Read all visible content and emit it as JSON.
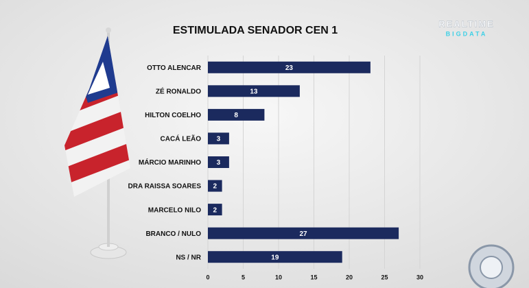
{
  "brand": {
    "line1": "REALTIME",
    "line2": "BIGDATA"
  },
  "chart_data": {
    "type": "barh",
    "title": "ESTIMULADA SENADOR CEN 1",
    "categories": [
      "OTTO ALENCAR",
      "ZÉ RONALDO",
      "HILTON COELHO",
      "CACÁ LEÃO",
      "MÁRCIO MARINHO",
      "DRA RAISSA SOARES",
      "MARCELO NILO",
      "BRANCO / NULO",
      "NS / NR"
    ],
    "values": [
      23,
      13,
      8,
      3,
      3,
      2,
      2,
      27,
      19
    ],
    "color": "#1b2a5e",
    "xlim": [
      0,
      30
    ],
    "xticks": [
      0,
      5,
      10,
      15,
      20,
      25,
      30
    ],
    "grid": true
  }
}
